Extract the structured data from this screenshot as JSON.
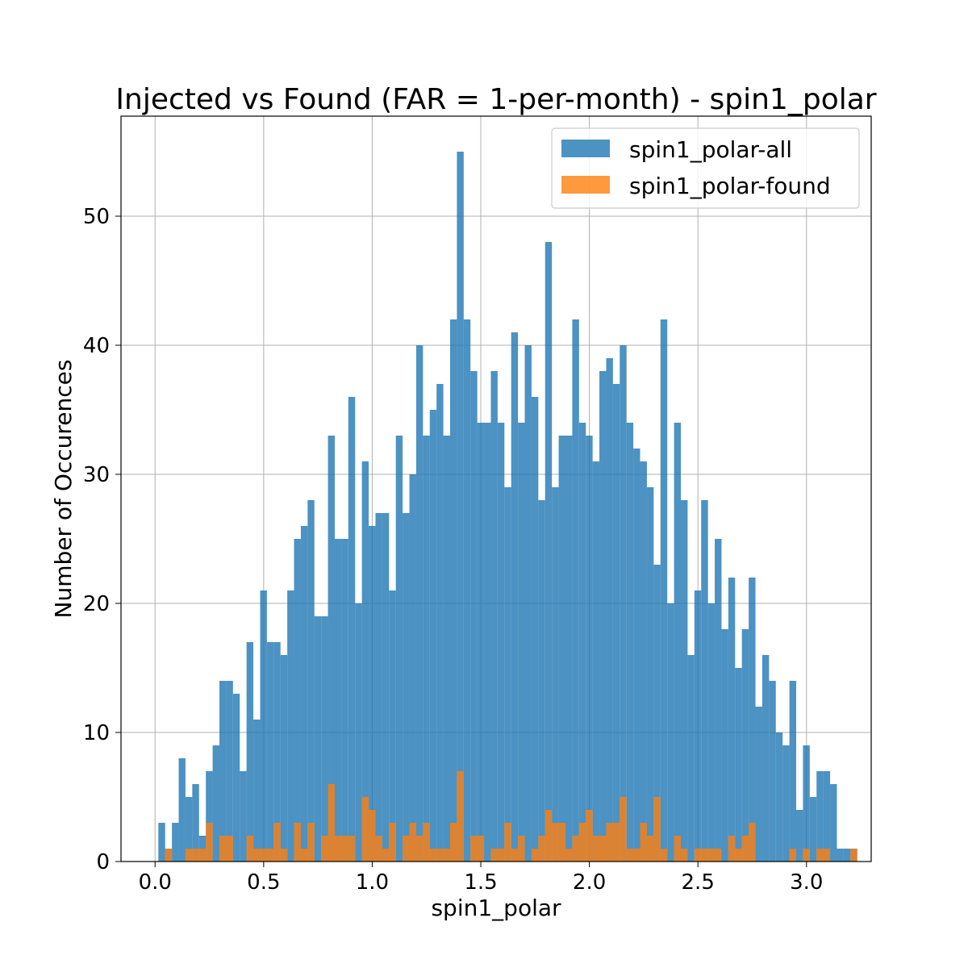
{
  "chart_data": {
    "type": "bar",
    "title": "Injected vs Found (FAR = 1-per-month) - spin1_polar",
    "xlabel": "spin1_polar",
    "ylabel": "Number of Occurences",
    "xlim": [
      -0.157,
      3.298
    ],
    "ylim": [
      0,
      57.75
    ],
    "xticks": [
      0.0,
      0.5,
      1.0,
      1.5,
      2.0,
      2.5,
      3.0
    ],
    "xtick_labels": [
      "0.0",
      "0.5",
      "1.0",
      "1.5",
      "2.0",
      "2.5",
      "3.0"
    ],
    "yticks": [
      0,
      10,
      20,
      30,
      40,
      50
    ],
    "ytick_labels": [
      "0",
      "10",
      "20",
      "30",
      "40",
      "50"
    ],
    "grid": true,
    "legend_position": "top-right",
    "bin_start": 0.015,
    "bin_width": 0.03125,
    "series": [
      {
        "name": "spin1_polar-all",
        "color": "#1f77b4",
        "alpha": 0.8,
        "values": [
          3,
          1,
          3,
          8,
          5,
          6,
          2,
          7,
          9,
          14,
          14,
          13,
          7,
          17,
          11,
          21,
          17,
          17,
          16,
          21,
          25,
          26,
          28,
          19,
          19,
          33,
          25,
          25,
          36,
          20,
          31,
          26,
          27,
          27,
          21,
          33,
          27,
          30,
          40,
          33,
          35,
          37,
          33,
          42,
          55,
          42,
          38,
          34,
          34,
          38,
          34,
          29,
          41,
          34,
          40,
          36,
          28,
          48,
          29,
          33,
          33,
          42,
          34,
          33,
          31,
          38,
          39,
          37,
          40,
          34,
          32,
          31,
          29,
          23,
          42,
          20,
          34,
          28,
          16,
          21,
          28,
          20,
          25,
          18,
          22,
          15,
          18,
          22,
          12,
          16,
          14,
          10,
          9,
          14,
          4,
          9,
          5,
          7,
          7,
          6,
          1,
          1,
          1
        ]
      },
      {
        "name": "spin1_polar-found",
        "color": "#ff7f0e",
        "alpha": 0.8,
        "values": [
          0,
          1,
          0,
          0,
          1,
          1,
          1,
          3,
          0,
          2,
          2,
          0,
          0,
          2,
          1,
          1,
          1,
          3,
          1,
          0,
          3,
          1,
          3,
          0,
          2,
          6,
          2,
          2,
          2,
          0,
          5,
          4,
          2,
          1,
          3,
          0,
          2,
          3,
          2,
          3,
          1,
          1,
          1,
          3,
          7,
          0,
          2,
          2,
          0,
          1,
          1,
          3,
          1,
          2,
          0,
          1,
          2,
          4,
          3,
          3,
          1,
          2,
          3,
          4,
          2,
          2,
          3,
          3,
          5,
          1,
          1,
          3,
          2,
          5,
          1,
          0,
          2,
          1,
          0,
          1,
          1,
          1,
          1,
          0,
          2,
          1,
          2,
          3,
          0,
          0,
          0,
          0,
          0,
          1,
          0,
          1,
          0,
          1,
          1,
          0,
          0,
          0,
          1
        ]
      }
    ]
  }
}
